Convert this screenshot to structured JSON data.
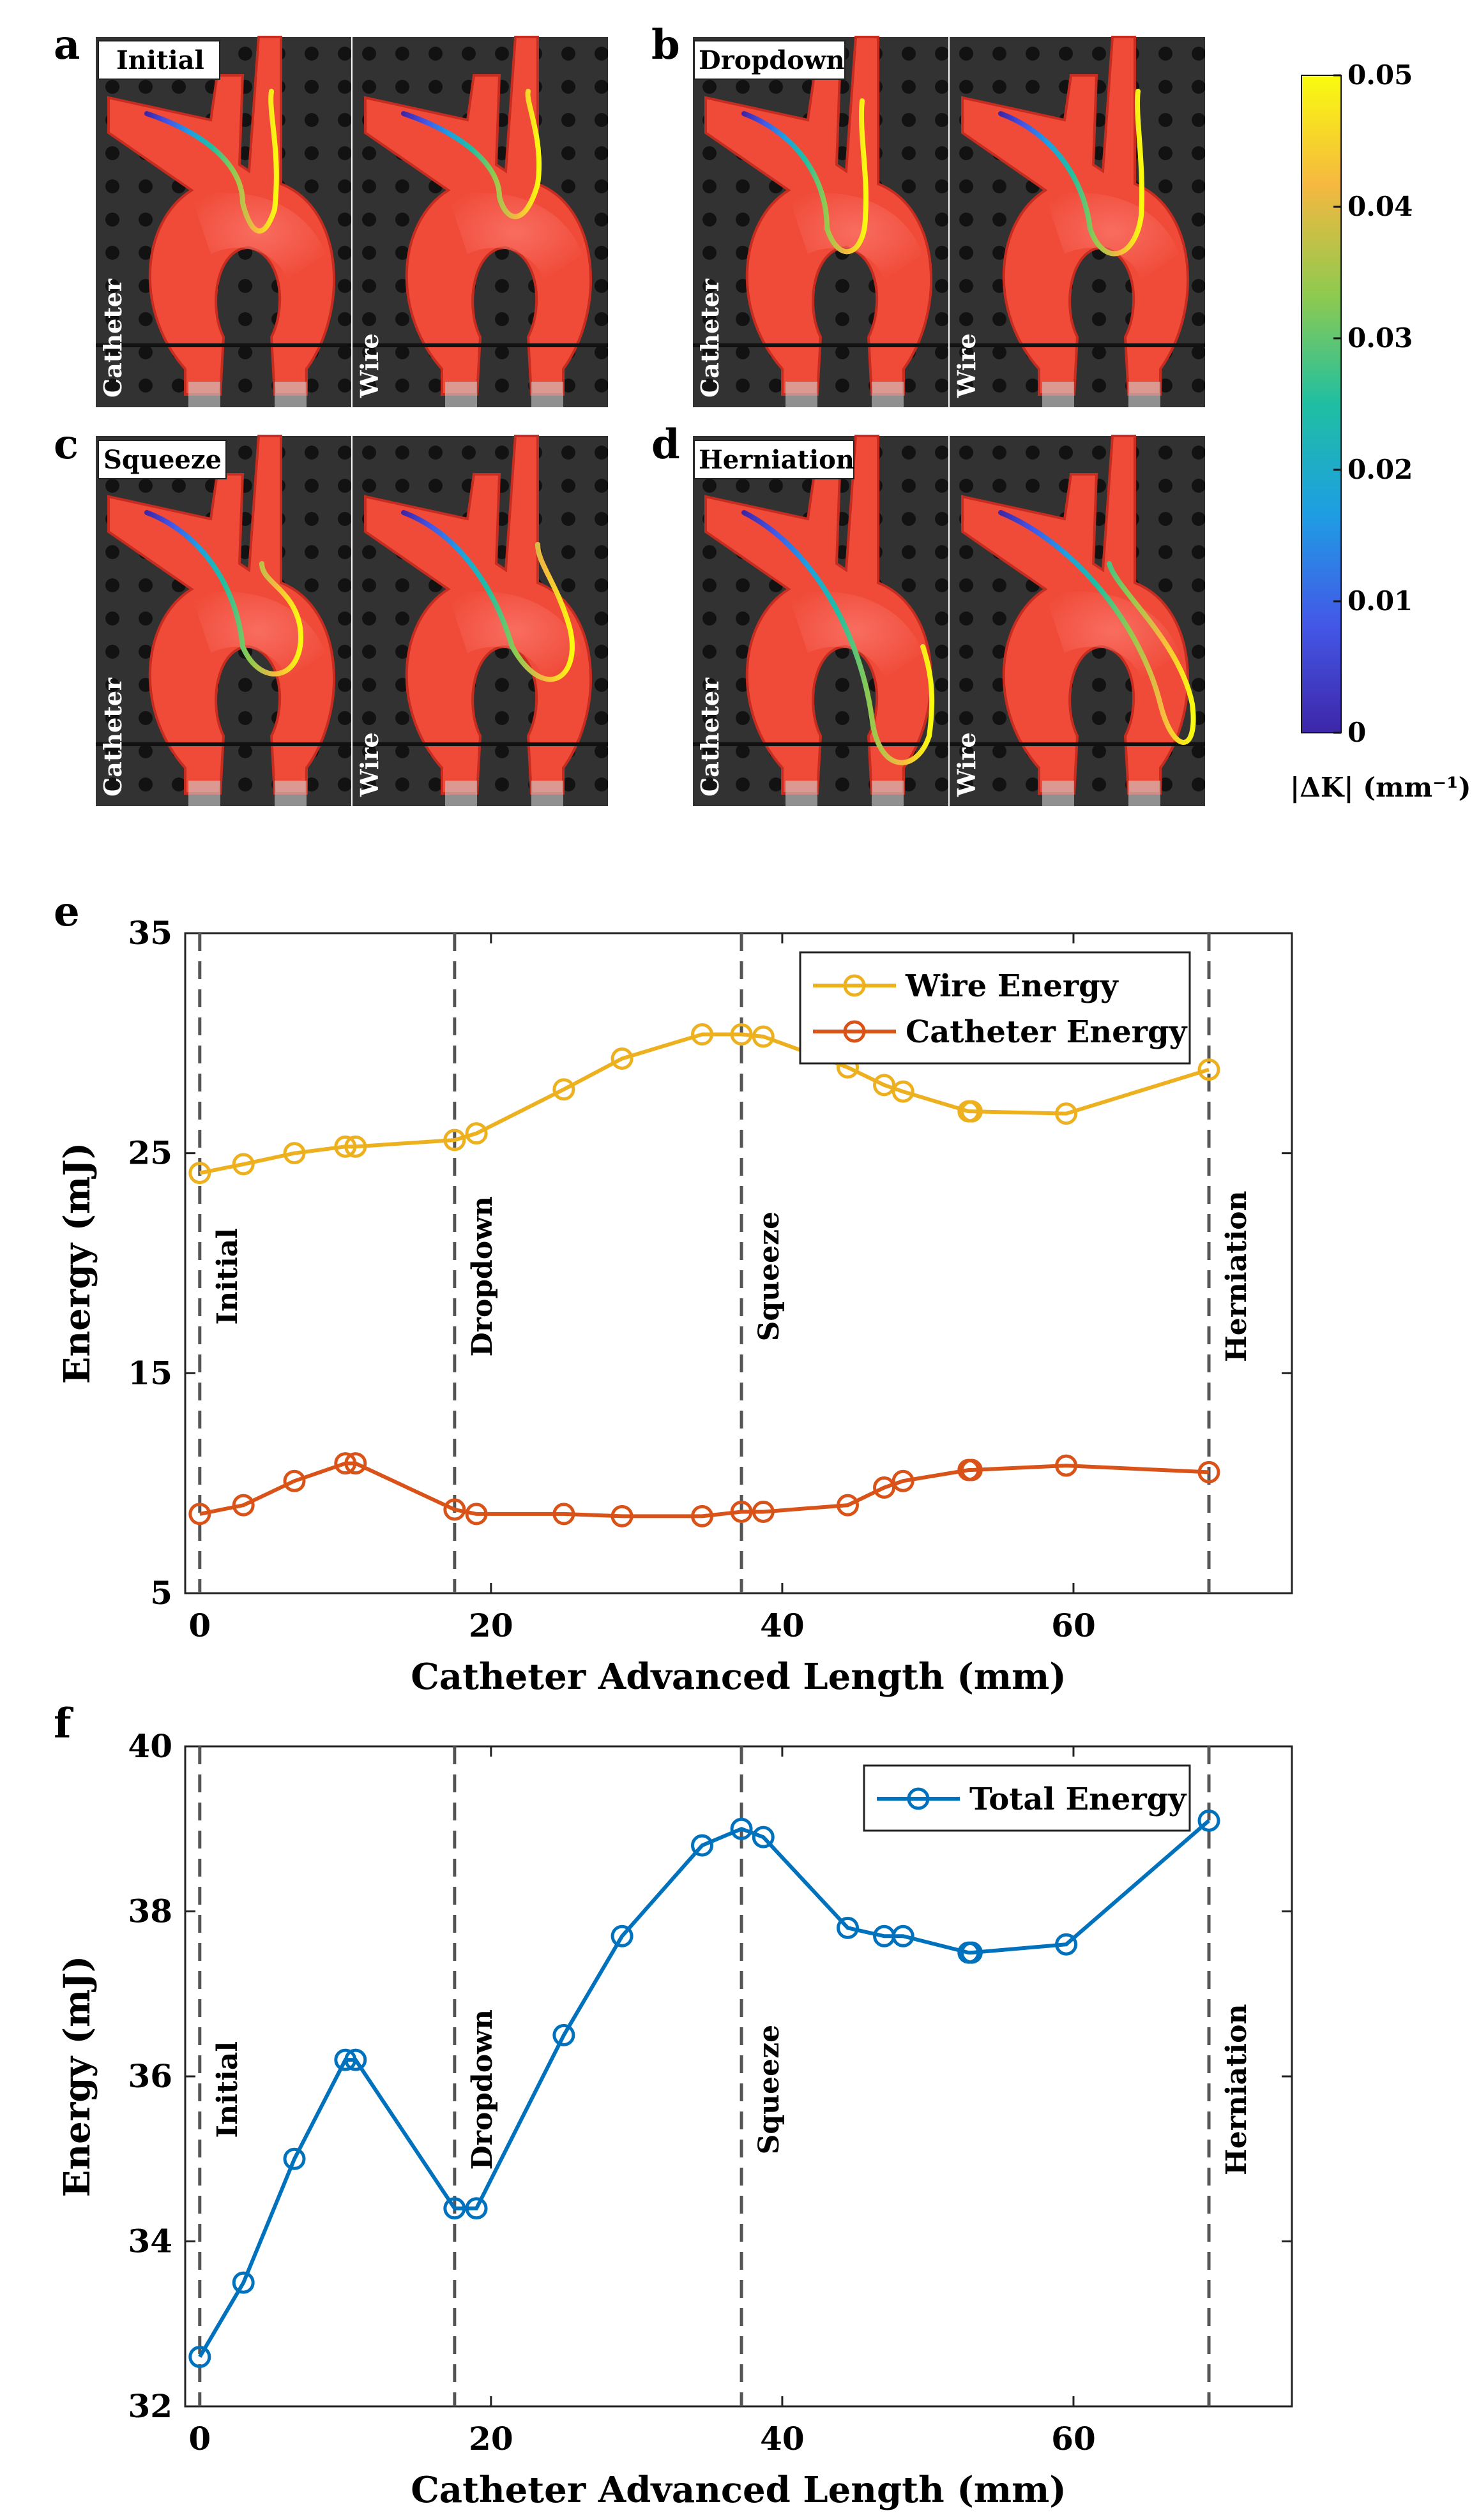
{
  "panels": {
    "a": {
      "letter": "a",
      "title": "Initial"
    },
    "b": {
      "letter": "b",
      "title": "Dropdown"
    },
    "c": {
      "letter": "c",
      "title": "Squeeze"
    },
    "d": {
      "letter": "d",
      "title": "Herniation"
    },
    "e": {
      "letter": "e"
    },
    "f": {
      "letter": "f"
    }
  },
  "photo_labels": {
    "left": "Catheter",
    "right": "Wire"
  },
  "colorbar": {
    "ticks": [
      "0",
      "0.01",
      "0.02",
      "0.03",
      "0.04",
      "0.05"
    ],
    "label": "|ΔK| (mm⁻¹)",
    "colors": [
      "#3e26a8",
      "#4358e8",
      "#1e9ee3",
      "#1fbfa2",
      "#8fca4f",
      "#f5b840",
      "#f9fb0e"
    ]
  },
  "colors": {
    "wire": "#EDB120",
    "catheter": "#D95319",
    "total": "#0072BD",
    "vline": "#555555"
  },
  "chart_data": [
    {
      "type": "line",
      "xlabel": "Catheter Advanced Length (mm)",
      "ylabel": "Energy (mJ)",
      "xlim": [
        -1,
        75
      ],
      "ylim": [
        5,
        35
      ],
      "xticks": [
        0,
        20,
        40,
        60
      ],
      "yticks": [
        5,
        15,
        25,
        35
      ],
      "legend_position": "top-right",
      "stage_lines": [
        {
          "x": 0,
          "label": "Initial"
        },
        {
          "x": 17.5,
          "label": "Dropdown"
        },
        {
          "x": 37.2,
          "label": "Squeeze"
        },
        {
          "x": 69.3,
          "label": "Herniation"
        }
      ],
      "series": [
        {
          "name": "Wire Energy",
          "color_key": "wire",
          "x": [
            0,
            3,
            6.5,
            10,
            10.7,
            17.5,
            19,
            25,
            29,
            34.5,
            37.2,
            38.7,
            44.5,
            47,
            48.3,
            52.8,
            53,
            59.5,
            69.3
          ],
          "y": [
            24.1,
            24.5,
            25,
            25.3,
            25.3,
            25.6,
            25.9,
            27.9,
            29.3,
            30.4,
            30.4,
            30.3,
            28.9,
            28.1,
            27.8,
            26.9,
            26.9,
            26.8,
            28.8
          ]
        },
        {
          "name": "Catheter Energy",
          "color_key": "catheter",
          "x": [
            0,
            3,
            6.5,
            10,
            10.7,
            17.5,
            19,
            25,
            29,
            34.5,
            37.2,
            38.7,
            44.5,
            47,
            48.3,
            52.8,
            53,
            59.5,
            69.3
          ],
          "y": [
            8.6,
            9,
            10.1,
            10.9,
            10.9,
            8.8,
            8.6,
            8.6,
            8.5,
            8.5,
            8.7,
            8.7,
            9,
            9.8,
            10.1,
            10.6,
            10.6,
            10.8,
            10.5
          ]
        }
      ]
    },
    {
      "type": "line",
      "xlabel": "Catheter Advanced Length (mm)",
      "ylabel": "Energy (mJ)",
      "xlim": [
        -1,
        75
      ],
      "ylim": [
        32,
        40
      ],
      "xticks": [
        0,
        20,
        40,
        60
      ],
      "yticks": [
        32,
        34,
        36,
        38,
        40
      ],
      "legend_position": "top-right",
      "stage_lines": [
        {
          "x": 0,
          "label": "Initial"
        },
        {
          "x": 17.5,
          "label": "Dropdown"
        },
        {
          "x": 37.2,
          "label": "Squeeze"
        },
        {
          "x": 69.3,
          "label": "Herniation"
        }
      ],
      "series": [
        {
          "name": "Total Energy",
          "color_key": "total",
          "x": [
            0,
            3,
            6.5,
            10,
            10.7,
            17.5,
            19,
            25,
            29,
            34.5,
            37.2,
            38.7,
            44.5,
            47,
            48.3,
            52.8,
            53,
            59.5,
            69.3
          ],
          "y": [
            32.6,
            33.5,
            35,
            36.2,
            36.2,
            34.4,
            34.4,
            36.5,
            37.7,
            38.8,
            39,
            38.9,
            37.8,
            37.7,
            37.7,
            37.5,
            37.5,
            37.6,
            39.1
          ]
        }
      ]
    }
  ]
}
